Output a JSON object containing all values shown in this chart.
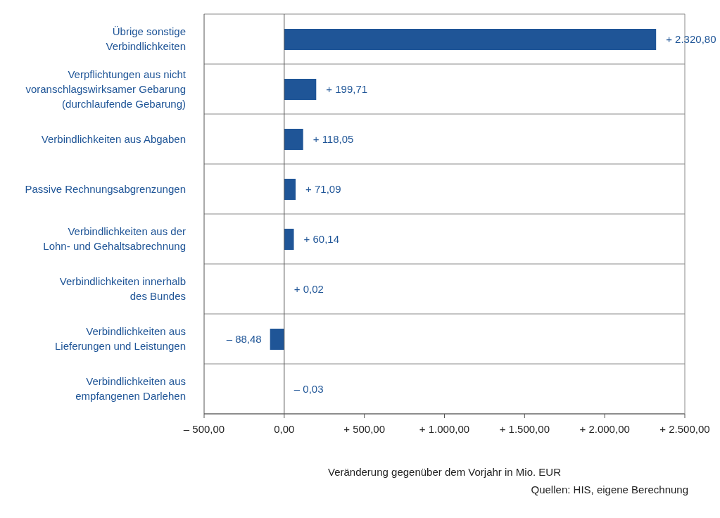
{
  "chart_data": {
    "type": "bar",
    "orientation": "horizontal",
    "categories": [
      "Übrige sonstige Verbindlichkeiten",
      "Verpflichtungen aus nicht voranschlagswirksamer Gebarung (durchlaufende Gebarung)",
      "Verbindlichkeiten aus Abgaben",
      "Passive Rechnungsabgrenzungen",
      "Verbindlichkeiten aus der Lohn- und Gehaltsabrechnung",
      "Verbindlichkeiten innerhalb des Bundes",
      "Verbindlichkeiten aus Lieferungen und Leistungen",
      "Verbindlichkeiten aus empfangenen Darlehen"
    ],
    "values": [
      2320.8,
      199.71,
      118.05,
      71.09,
      60.14,
      0.02,
      -88.48,
      -0.03
    ],
    "value_labels": [
      "+ 2.320,80",
      "+ 199,71",
      "+ 118,05",
      "+ 71,09",
      "+ 60,14",
      "+ 0,02",
      "– 88,48",
      "– 0,03"
    ],
    "color": "#1f5597",
    "xlim": [
      -500,
      2500
    ],
    "xticks": [
      {
        "value": -500,
        "label": "– 500,00"
      },
      {
        "value": 0,
        "label": "0,00"
      },
      {
        "value": 500,
        "label": "+ 500,00"
      },
      {
        "value": 1000,
        "label": "+ 1.000,00"
      },
      {
        "value": 1500,
        "label": "+ 1.500,00"
      },
      {
        "value": 2000,
        "label": "+ 2.000,00"
      },
      {
        "value": 2500,
        "label": "+ 2.500,00"
      }
    ],
    "xlabel": "Veränderung gegenüber dem Vorjahr in Mio. EUR",
    "annotations": [
      "Quellen: HIS, eigene Berechnung"
    ],
    "ref_lines": [
      {
        "axis": "x",
        "value": 0,
        "color": "#555555"
      }
    ],
    "grid": "y"
  }
}
